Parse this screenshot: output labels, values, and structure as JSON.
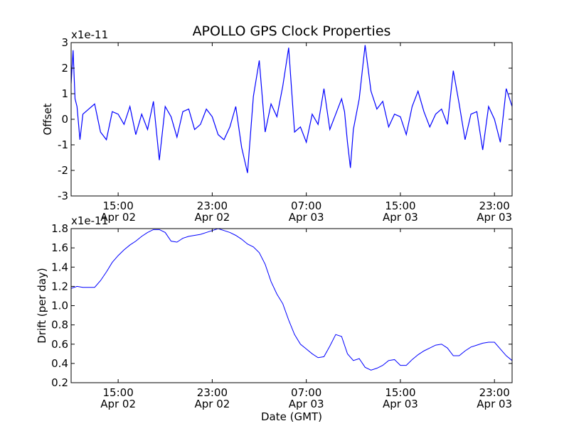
{
  "chart_data": [
    {
      "type": "line",
      "title": "APOLLO GPS Clock Properties",
      "xlabel": "",
      "ylabel": "Offset",
      "y_multiplier": "x1e-11",
      "ylim": [
        -3,
        3
      ],
      "yticks": [
        -3,
        -2,
        -1,
        0,
        1,
        2,
        3
      ],
      "yticklabels": [
        "-3",
        "-2",
        "-1",
        "0",
        "1",
        "2",
        "3"
      ],
      "xlim": [
        "2002-04-02T11:00",
        "2002-04-04T00:30"
      ],
      "xticks": [
        "2002-04-02T15:00",
        "2002-04-02T23:00",
        "2002-04-03T07:00",
        "2002-04-03T15:00",
        "2002-04-03T23:00"
      ],
      "xticklabels": [
        {
          "time": "15:00",
          "date": "Apr 02"
        },
        {
          "time": "23:00",
          "date": "Apr 02"
        },
        {
          "time": "07:00",
          "date": "Apr 03"
        },
        {
          "time": "15:00",
          "date": "Apr 03"
        },
        {
          "time": "23:00",
          "date": "Apr 03"
        }
      ],
      "grid": false,
      "line_color": "#0000ff",
      "series": [
        {
          "x": [
            "2002-04-02T11:00",
            "2002-04-02T11:10",
            "2002-04-02T11:20",
            "2002-04-02T11:30",
            "2002-04-02T11:45",
            "2002-04-02T12:00",
            "2002-04-02T12:30",
            "2002-04-02T13:00",
            "2002-04-02T13:30",
            "2002-04-02T14:00",
            "2002-04-02T14:30",
            "2002-04-02T15:00",
            "2002-04-02T15:30",
            "2002-04-02T16:00",
            "2002-04-02T16:30",
            "2002-04-02T17:00",
            "2002-04-02T17:30",
            "2002-04-02T18:00",
            "2002-04-02T18:30",
            "2002-04-02T19:00",
            "2002-04-02T19:30",
            "2002-04-02T20:00",
            "2002-04-02T20:30",
            "2002-04-02T21:00",
            "2002-04-02T21:30",
            "2002-04-02T22:00",
            "2002-04-02T22:30",
            "2002-04-02T23:00",
            "2002-04-02T23:30",
            "2002-04-03T00:00",
            "2002-04-03T00:30",
            "2002-04-03T01:00",
            "2002-04-03T01:30",
            "2002-04-03T02:00",
            "2002-04-03T02:30",
            "2002-04-03T03:00",
            "2002-04-03T03:30",
            "2002-04-03T04:00",
            "2002-04-03T04:30",
            "2002-04-03T05:00",
            "2002-04-03T05:30",
            "2002-04-03T06:00",
            "2002-04-03T06:30",
            "2002-04-03T07:00",
            "2002-04-03T07:30",
            "2002-04-03T08:00",
            "2002-04-03T08:30",
            "2002-04-03T09:00",
            "2002-04-03T09:30",
            "2002-04-03T10:00",
            "2002-04-03T10:15",
            "2002-04-03T10:30",
            "2002-04-03T10:45",
            "2002-04-03T11:00",
            "2002-04-03T11:30",
            "2002-04-03T12:00",
            "2002-04-03T12:30",
            "2002-04-03T13:00",
            "2002-04-03T13:30",
            "2002-04-03T14:00",
            "2002-04-03T14:30",
            "2002-04-03T15:00",
            "2002-04-03T15:30",
            "2002-04-03T16:00",
            "2002-04-03T16:30",
            "2002-04-03T17:00",
            "2002-04-03T17:30",
            "2002-04-03T18:00",
            "2002-04-03T18:30",
            "2002-04-03T19:00",
            "2002-04-03T19:30",
            "2002-04-03T20:00",
            "2002-04-03T20:30",
            "2002-04-03T21:00",
            "2002-04-03T21:30",
            "2002-04-03T22:00",
            "2002-04-03T22:30",
            "2002-04-03T23:00",
            "2002-04-03T23:30",
            "2002-04-04T00:00",
            "2002-04-04T00:30"
          ],
          "y": [
            1.4,
            2.7,
            0.8,
            0.5,
            -0.8,
            0.2,
            0.4,
            0.6,
            -0.5,
            -0.8,
            0.3,
            0.2,
            -0.2,
            0.5,
            -0.6,
            0.2,
            -0.4,
            0.7,
            -1.6,
            0.5,
            0.1,
            -0.7,
            0.3,
            0.4,
            -0.4,
            -0.2,
            0.4,
            0.1,
            -0.6,
            -0.8,
            -0.3,
            0.5,
            -1.1,
            -2.1,
            0.9,
            2.3,
            -0.5,
            0.6,
            0.1,
            1.3,
            2.8,
            -0.5,
            -0.3,
            -0.9,
            0.2,
            -0.2,
            1.2,
            -0.4,
            0.2,
            0.8,
            0.3,
            -0.9,
            -1.9,
            -0.4,
            0.8,
            2.9,
            1.1,
            0.4,
            0.7,
            -0.3,
            0.2,
            0.1,
            -0.6,
            0.5,
            1.1,
            0.3,
            -0.3,
            0.2,
            0.4,
            -0.2,
            1.9,
            0.6,
            -0.8,
            0.2,
            0.3,
            -1.2,
            0.5,
            0.0,
            -0.9,
            1.2,
            0.5
          ]
        }
      ]
    },
    {
      "type": "line",
      "title": "",
      "xlabel": "Date (GMT)",
      "ylabel": "Drift (per day)",
      "y_multiplier": "x1e-11",
      "ylim": [
        0.2,
        1.8
      ],
      "yticks": [
        0.2,
        0.4,
        0.6,
        0.8,
        1.0,
        1.2,
        1.4,
        1.6,
        1.8
      ],
      "yticklabels": [
        "0.2",
        "0.4",
        "0.6",
        "0.8",
        "1.0",
        "1.2",
        "1.4",
        "1.6",
        "1.8"
      ],
      "xlim": [
        "2002-04-02T11:00",
        "2002-04-04T00:30"
      ],
      "xticks": [
        "2002-04-02T15:00",
        "2002-04-02T23:00",
        "2002-04-03T07:00",
        "2002-04-03T15:00",
        "2002-04-03T23:00"
      ],
      "xticklabels": [
        {
          "time": "15:00",
          "date": "Apr 02"
        },
        {
          "time": "23:00",
          "date": "Apr 02"
        },
        {
          "time": "07:00",
          "date": "Apr 03"
        },
        {
          "time": "15:00",
          "date": "Apr 03"
        },
        {
          "time": "23:00",
          "date": "Apr 03"
        }
      ],
      "grid": false,
      "line_color": "#0000ff",
      "series": [
        {
          "x": [
            "2002-04-02T11:00",
            "2002-04-02T11:30",
            "2002-04-02T12:00",
            "2002-04-02T12:30",
            "2002-04-02T13:00",
            "2002-04-02T13:30",
            "2002-04-02T14:00",
            "2002-04-02T14:30",
            "2002-04-02T15:00",
            "2002-04-02T15:30",
            "2002-04-02T16:00",
            "2002-04-02T16:30",
            "2002-04-02T17:00",
            "2002-04-02T17:30",
            "2002-04-02T18:00",
            "2002-04-02T18:30",
            "2002-04-02T19:00",
            "2002-04-02T19:30",
            "2002-04-02T20:00",
            "2002-04-02T20:30",
            "2002-04-02T21:00",
            "2002-04-02T21:30",
            "2002-04-02T22:00",
            "2002-04-02T22:30",
            "2002-04-02T23:00",
            "2002-04-02T23:30",
            "2002-04-03T00:00",
            "2002-04-03T00:30",
            "2002-04-03T01:00",
            "2002-04-03T01:30",
            "2002-04-03T02:00",
            "2002-04-03T02:30",
            "2002-04-03T03:00",
            "2002-04-03T03:30",
            "2002-04-03T04:00",
            "2002-04-03T04:30",
            "2002-04-03T05:00",
            "2002-04-03T05:30",
            "2002-04-03T06:00",
            "2002-04-03T06:30",
            "2002-04-03T07:00",
            "2002-04-03T07:30",
            "2002-04-03T08:00",
            "2002-04-03T08:30",
            "2002-04-03T09:00",
            "2002-04-03T09:30",
            "2002-04-03T10:00",
            "2002-04-03T10:30",
            "2002-04-03T11:00",
            "2002-04-03T11:30",
            "2002-04-03T12:00",
            "2002-04-03T12:30",
            "2002-04-03T13:00",
            "2002-04-03T13:30",
            "2002-04-03T14:00",
            "2002-04-03T14:30",
            "2002-04-03T15:00",
            "2002-04-03T15:30",
            "2002-04-03T16:00",
            "2002-04-03T16:30",
            "2002-04-03T17:00",
            "2002-04-03T17:30",
            "2002-04-03T18:00",
            "2002-04-03T18:30",
            "2002-04-03T19:00",
            "2002-04-03T19:30",
            "2002-04-03T20:00",
            "2002-04-03T20:30",
            "2002-04-03T21:00",
            "2002-04-03T21:30",
            "2002-04-03T22:00",
            "2002-04-03T22:30",
            "2002-04-03T23:00",
            "2002-04-03T23:30",
            "2002-04-04T00:00",
            "2002-04-04T00:30"
          ],
          "y": [
            1.18,
            1.2,
            1.19,
            1.19,
            1.19,
            1.26,
            1.35,
            1.45,
            1.52,
            1.58,
            1.63,
            1.67,
            1.72,
            1.76,
            1.79,
            1.79,
            1.76,
            1.67,
            1.66,
            1.7,
            1.72,
            1.73,
            1.74,
            1.76,
            1.78,
            1.8,
            1.78,
            1.76,
            1.73,
            1.69,
            1.64,
            1.61,
            1.55,
            1.43,
            1.25,
            1.12,
            1.02,
            0.85,
            0.7,
            0.6,
            0.55,
            0.5,
            0.46,
            0.47,
            0.58,
            0.7,
            0.68,
            0.5,
            0.43,
            0.45,
            0.36,
            0.33,
            0.35,
            0.38,
            0.43,
            0.44,
            0.38,
            0.38,
            0.44,
            0.49,
            0.53,
            0.56,
            0.59,
            0.6,
            0.56,
            0.48,
            0.48,
            0.53,
            0.57,
            0.59,
            0.61,
            0.62,
            0.62,
            0.55,
            0.48,
            0.43
          ]
        }
      ]
    }
  ]
}
